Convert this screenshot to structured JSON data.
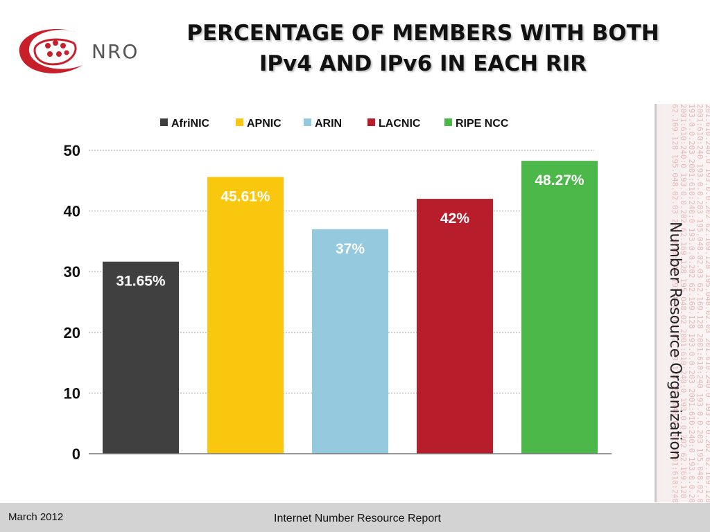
{
  "header": {
    "logo_text": "NRO",
    "title_line1": "PERCENTAGE OF MEMBERS WITH BOTH",
    "title_line2": "IPv4 AND IPv6 IN EACH RIR"
  },
  "side": {
    "label": "Number Resource Organization",
    "ip_lines": [
      "201.610.240.0  193.0.0.202  62.169.128  195.048.02.03",
      "2001:610:240  193.0.0.203  195.048.02.03  62.169.128",
      "193.0.0.203  2001:610:240:0  193.0.0.202  62.169.128",
      "2001:610:240:0  193.0.0.202  62.169.128  195.048.02",
      "62.169.128  195.048.02.03  2001:610:240  193.0.0.203"
    ]
  },
  "footer": {
    "date": "March 2012",
    "report": "Internet Number Resource Report"
  },
  "chart_data": {
    "type": "bar",
    "categories": [
      "AfriNIC",
      "APNIC",
      "ARIN",
      "LACNIC",
      "RIPE NCC"
    ],
    "values": [
      31.65,
      45.61,
      37,
      42,
      48.27
    ],
    "data_labels": [
      "31.65%",
      "45.61%",
      "37%",
      "42%",
      "48.27%"
    ],
    "colors": [
      "#404040",
      "#f9c80e",
      "#95c9dd",
      "#b81d2c",
      "#4cb84a"
    ],
    "legend": [
      "AfriNIC",
      "APNIC",
      "ARIN",
      "LACNIC",
      "RIPE NCC"
    ],
    "legend_position": "top",
    "yticks": [
      0,
      10,
      20,
      30,
      40,
      50
    ],
    "ylim": [
      0,
      50
    ],
    "grid": true
  }
}
